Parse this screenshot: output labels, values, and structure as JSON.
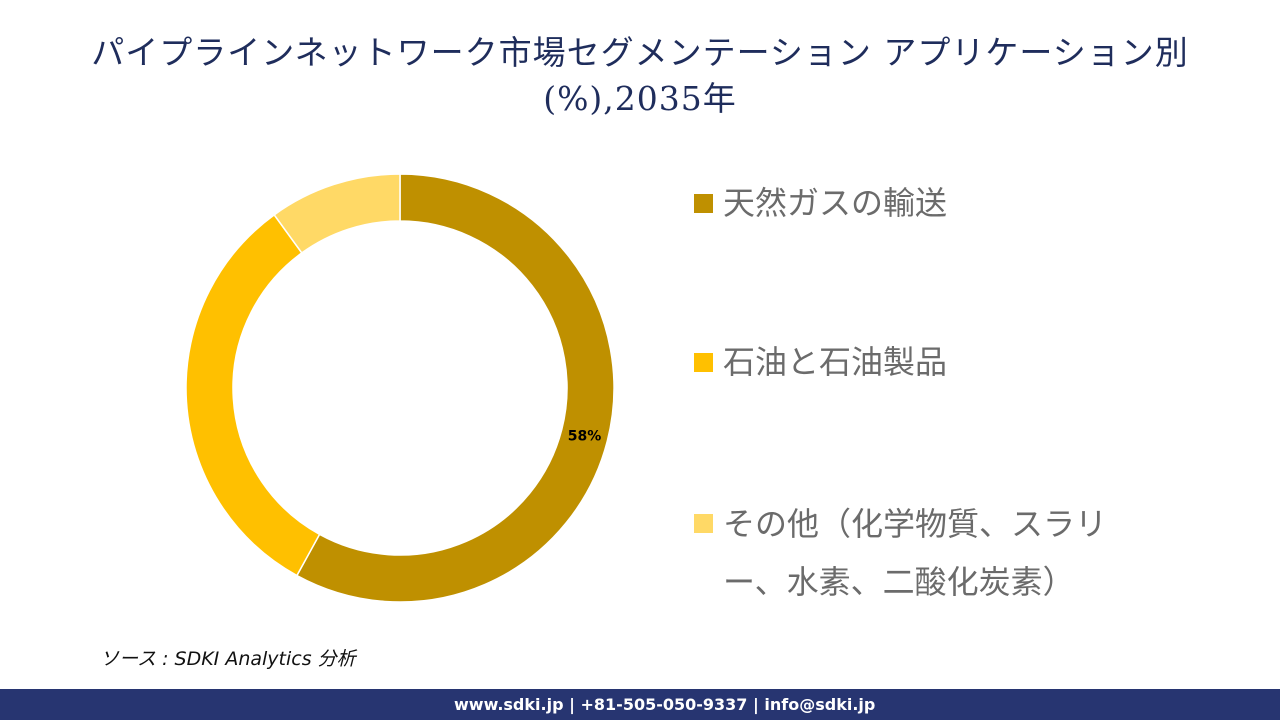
{
  "title": "パイプラインネットワーク市場セグメンテーション アプリケーション別(%),2035年",
  "title_line1": "パイプラインネットワーク市場セグメンテーション アプリケーション別",
  "title_line2": "(%),2035年",
  "chart_data": {
    "type": "donut",
    "title": "パイプラインネットワーク市場セグメンテーション アプリケーション別(%),2035年",
    "categories": [
      "天然ガスの輸送",
      "石油と石油製品",
      "その他（化学物質、スラリー、水素、二酸化炭素）"
    ],
    "values": [
      58,
      32,
      10
    ],
    "unit": "%",
    "data_labels": [
      "58%",
      "",
      ""
    ],
    "colors": [
      "#BF9000",
      "#FFC000",
      "#FFD966"
    ],
    "legend_position": "right"
  },
  "legend": [
    {
      "label": "天然ガスの輸送",
      "color": "#BF9000"
    },
    {
      "label": "石油と石油製品",
      "color": "#FFC000"
    },
    {
      "label": "その他（化学物質、スラリー、水素、二酸化炭素）",
      "color": "#FFD966"
    }
  ],
  "source": "ソース : SDKI Analytics 分析",
  "footer": "www.sdki.jp | +81-505-050-9337 | info@sdki.jp"
}
